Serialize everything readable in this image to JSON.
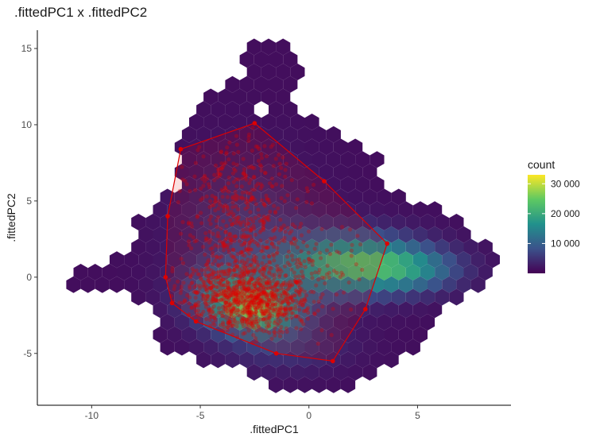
{
  "chart_data": {
    "type": "hexbin",
    "title": ".fittedPC1 x .fittedPC2",
    "xlabel": ".fittedPC1",
    "ylabel": ".fittedPC2",
    "xlim": [
      -12.5,
      9.3
    ],
    "ylim": [
      -8.4,
      16.2
    ],
    "xticks": [
      -10,
      -5,
      0,
      5
    ],
    "yticks": [
      -5,
      0,
      5,
      10,
      15
    ],
    "grid": false,
    "legend": {
      "title": "count",
      "placement": "right",
      "min": 0,
      "max": 33000,
      "ticks": [
        10000,
        20000,
        30000
      ],
      "tick_labels": [
        "10 000",
        "20 000",
        "30 000"
      ],
      "colormap": "viridis"
    },
    "hull": [
      [
        -2.5,
        10.1
      ],
      [
        0.7,
        6.3
      ],
      [
        3.6,
        2.2
      ],
      [
        2.6,
        -2.1
      ],
      [
        1.1,
        -5.5
      ],
      [
        -1.5,
        -5.0
      ],
      [
        -5.2,
        -2.9
      ],
      [
        -6.3,
        -1.7
      ],
      [
        -6.6,
        0.0
      ],
      [
        -6.5,
        4.0
      ],
      [
        -5.9,
        8.4
      ]
    ],
    "overlay_points_description_note": "",
    "colors": {
      "hull_line": "#dd0000",
      "points": "#e00000",
      "panel": "#ffffff"
    }
  }
}
